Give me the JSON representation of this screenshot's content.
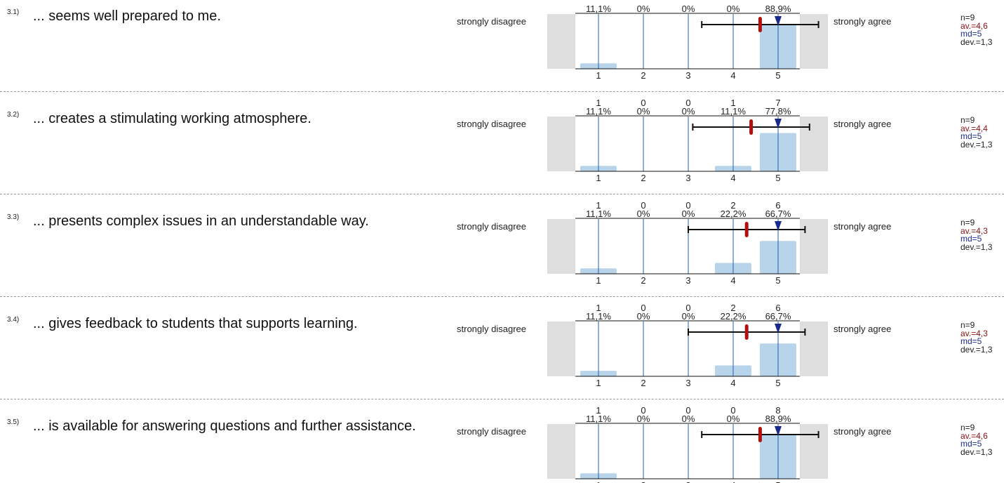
{
  "scale": {
    "left_label": "strongly disagree",
    "right_label": "strongly agree",
    "categories": [
      "1",
      "2",
      "3",
      "4",
      "5"
    ]
  },
  "colors": {
    "bar": "#b8d4eb",
    "gridline": "#1f5fa8",
    "side_panel": "#dedede",
    "mean_marker": "#b01010",
    "median_marker": "#1a2a8c",
    "error_bar": "#111111"
  },
  "chart_data": [
    {
      "type": "bar",
      "question_number": "3.1)",
      "question": "... seems well prepared to me.",
      "categories": [
        "1",
        "2",
        "3",
        "4",
        "5"
      ],
      "counts": [
        "",
        "",
        "",
        "",
        ""
      ],
      "percent_labels": [
        "11,1%",
        "0%",
        "0%",
        "0%",
        "88,9%"
      ],
      "values": [
        11.1,
        0,
        0,
        0,
        88.9
      ],
      "ylim": [
        0,
        100
      ],
      "mean": 4.6,
      "median": 5,
      "sd": 1.3,
      "stats": {
        "n": "n=9",
        "av": "av.=4,6",
        "md": "md=5",
        "dev": "dev.=1,3"
      }
    },
    {
      "type": "bar",
      "question_number": "3.2)",
      "question": "... creates a stimulating working atmosphere.",
      "categories": [
        "1",
        "2",
        "3",
        "4",
        "5"
      ],
      "counts": [
        "1",
        "0",
        "0",
        "1",
        "7"
      ],
      "percent_labels": [
        "11,1%",
        "0%",
        "0%",
        "11,1%",
        "77,8%"
      ],
      "values": [
        11.1,
        0,
        0,
        11.1,
        77.8
      ],
      "ylim": [
        0,
        100
      ],
      "mean": 4.4,
      "median": 5,
      "sd": 1.3,
      "stats": {
        "n": "n=9",
        "av": "av.=4,4",
        "md": "md=5",
        "dev": "dev.=1,3"
      }
    },
    {
      "type": "bar",
      "question_number": "3.3)",
      "question": "... presents complex issues in an understandable way.",
      "categories": [
        "1",
        "2",
        "3",
        "4",
        "5"
      ],
      "counts": [
        "1",
        "0",
        "0",
        "2",
        "6"
      ],
      "percent_labels": [
        "11,1%",
        "0%",
        "0%",
        "22,2%",
        "66,7%"
      ],
      "values": [
        11.1,
        0,
        0,
        22.2,
        66.7
      ],
      "ylim": [
        0,
        100
      ],
      "mean": 4.3,
      "median": 5,
      "sd": 1.3,
      "stats": {
        "n": "n=9",
        "av": "av.=4,3",
        "md": "md=5",
        "dev": "dev.=1,3"
      }
    },
    {
      "type": "bar",
      "question_number": "3.4)",
      "question": "... gives feedback to students that supports learning.",
      "categories": [
        "1",
        "2",
        "3",
        "4",
        "5"
      ],
      "counts": [
        "1",
        "0",
        "0",
        "2",
        "6"
      ],
      "percent_labels": [
        "11,1%",
        "0%",
        "0%",
        "22,2%",
        "66,7%"
      ],
      "values": [
        11.1,
        0,
        0,
        22.2,
        66.7
      ],
      "ylim": [
        0,
        100
      ],
      "mean": 4.3,
      "median": 5,
      "sd": 1.3,
      "stats": {
        "n": "n=9",
        "av": "av.=4,3",
        "md": "md=5",
        "dev": "dev.=1,3"
      }
    },
    {
      "type": "bar",
      "question_number": "3.5)",
      "question": "... is available for answering questions and further assistance.",
      "categories": [
        "1",
        "2",
        "3",
        "4",
        "5"
      ],
      "counts": [
        "1",
        "0",
        "0",
        "0",
        "8"
      ],
      "percent_labels": [
        "11,1%",
        "0%",
        "0%",
        "0%",
        "88,9%"
      ],
      "values": [
        11.1,
        0,
        0,
        0,
        88.9
      ],
      "ylim": [
        0,
        100
      ],
      "mean": 4.6,
      "median": 5,
      "sd": 1.3,
      "stats": {
        "n": "n=9",
        "av": "av.=4,6",
        "md": "md=5",
        "dev": "dev.=1,3"
      }
    }
  ]
}
